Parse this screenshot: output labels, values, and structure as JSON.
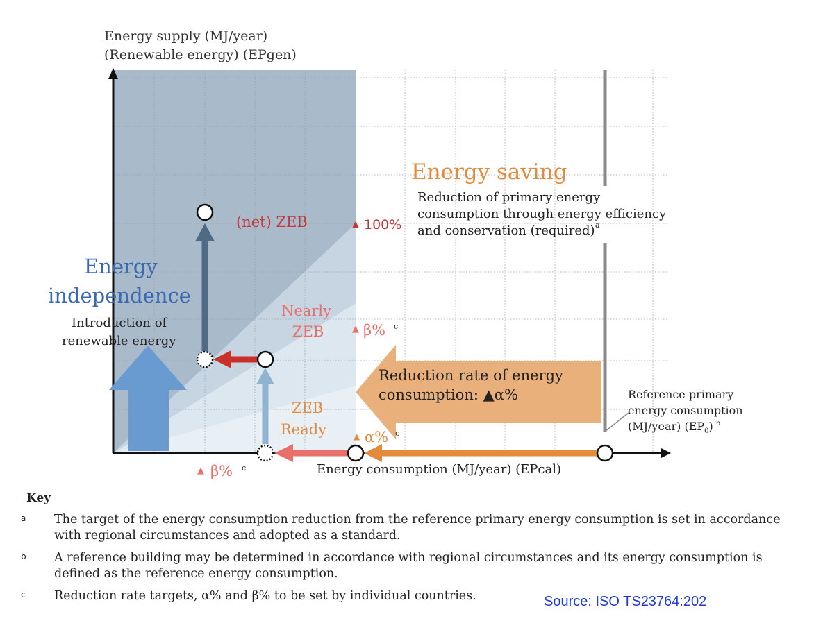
{
  "diagram": {
    "y_axis_label_line1": "Energy supply (MJ/year)",
    "y_axis_label_line2": "(Renewable energy) (EPgen)",
    "x_axis_label": "Energy consumption (MJ/year) (EPcal)",
    "energy_saving_title": "Energy saving",
    "energy_saving_desc_line1": "Reduction of primary energy",
    "energy_saving_desc_line2": "consumption through energy efficiency",
    "energy_saving_desc_line3": "and conservation (required)",
    "energy_saving_desc_note": "a",
    "independence_line1": "Energy",
    "independence_line2": "independence",
    "renewable_line1": "Introduction of",
    "renewable_line2": "renewable energy",
    "zone_net_zeb": "(net) ZEB",
    "zone_nearly_zeb_line1": "Nearly",
    "zone_nearly_zeb_line2": "ZEB",
    "zone_zeb_ready_line1": "ZEB",
    "zone_zeb_ready_line2": "Ready",
    "marker_100": "100%",
    "marker_beta_right": "β%",
    "marker_beta_bottom": "β%",
    "marker_alpha": "α%",
    "note_c": "c",
    "reduction_line1": "Reduction rate of energy",
    "reduction_line2": "consumption:  ▲α%",
    "reference_line1": "Reference primary",
    "reference_line2": "energy consumption",
    "reference_line3": "(MJ/year) (EP",
    "reference_sub": "0",
    "reference_line3_end": ")",
    "reference_note": "b",
    "triangle": "▲"
  },
  "key": {
    "title": "Key",
    "items": [
      {
        "mark": "a",
        "text": "The target of the energy consumption reduction from the reference primary energy consumption is set in accordance with regional circumstances and adopted as a standard."
      },
      {
        "mark": "b",
        "text": "A reference building may be determined in accordance with regional circumstances and its energy consumption is defined as the reference energy consumption."
      },
      {
        "mark": "c",
        "text": "Reduction rate targets, α% and β% to be set by individual countries."
      }
    ]
  },
  "source": "Source: ISO TS23764:202",
  "colors": {
    "dark_zone": "#a9bacb",
    "mid_zone": "#c6d5e1",
    "light_zone": "#e3ecf3",
    "orange": "#e2a063",
    "orange_text": "#e38b3d",
    "red_text": "#c4383a",
    "blue_text": "#3a6ab1",
    "arrow_dark": "#4d6b85",
    "arrow_light": "#8fb3d1",
    "arrow_red": "#c9302c",
    "arrow_pink": "#e8706a",
    "big_blue": "#6a9bd0",
    "ref_gray": "#8a8a8a",
    "source_blue": "#1f3bd1"
  }
}
